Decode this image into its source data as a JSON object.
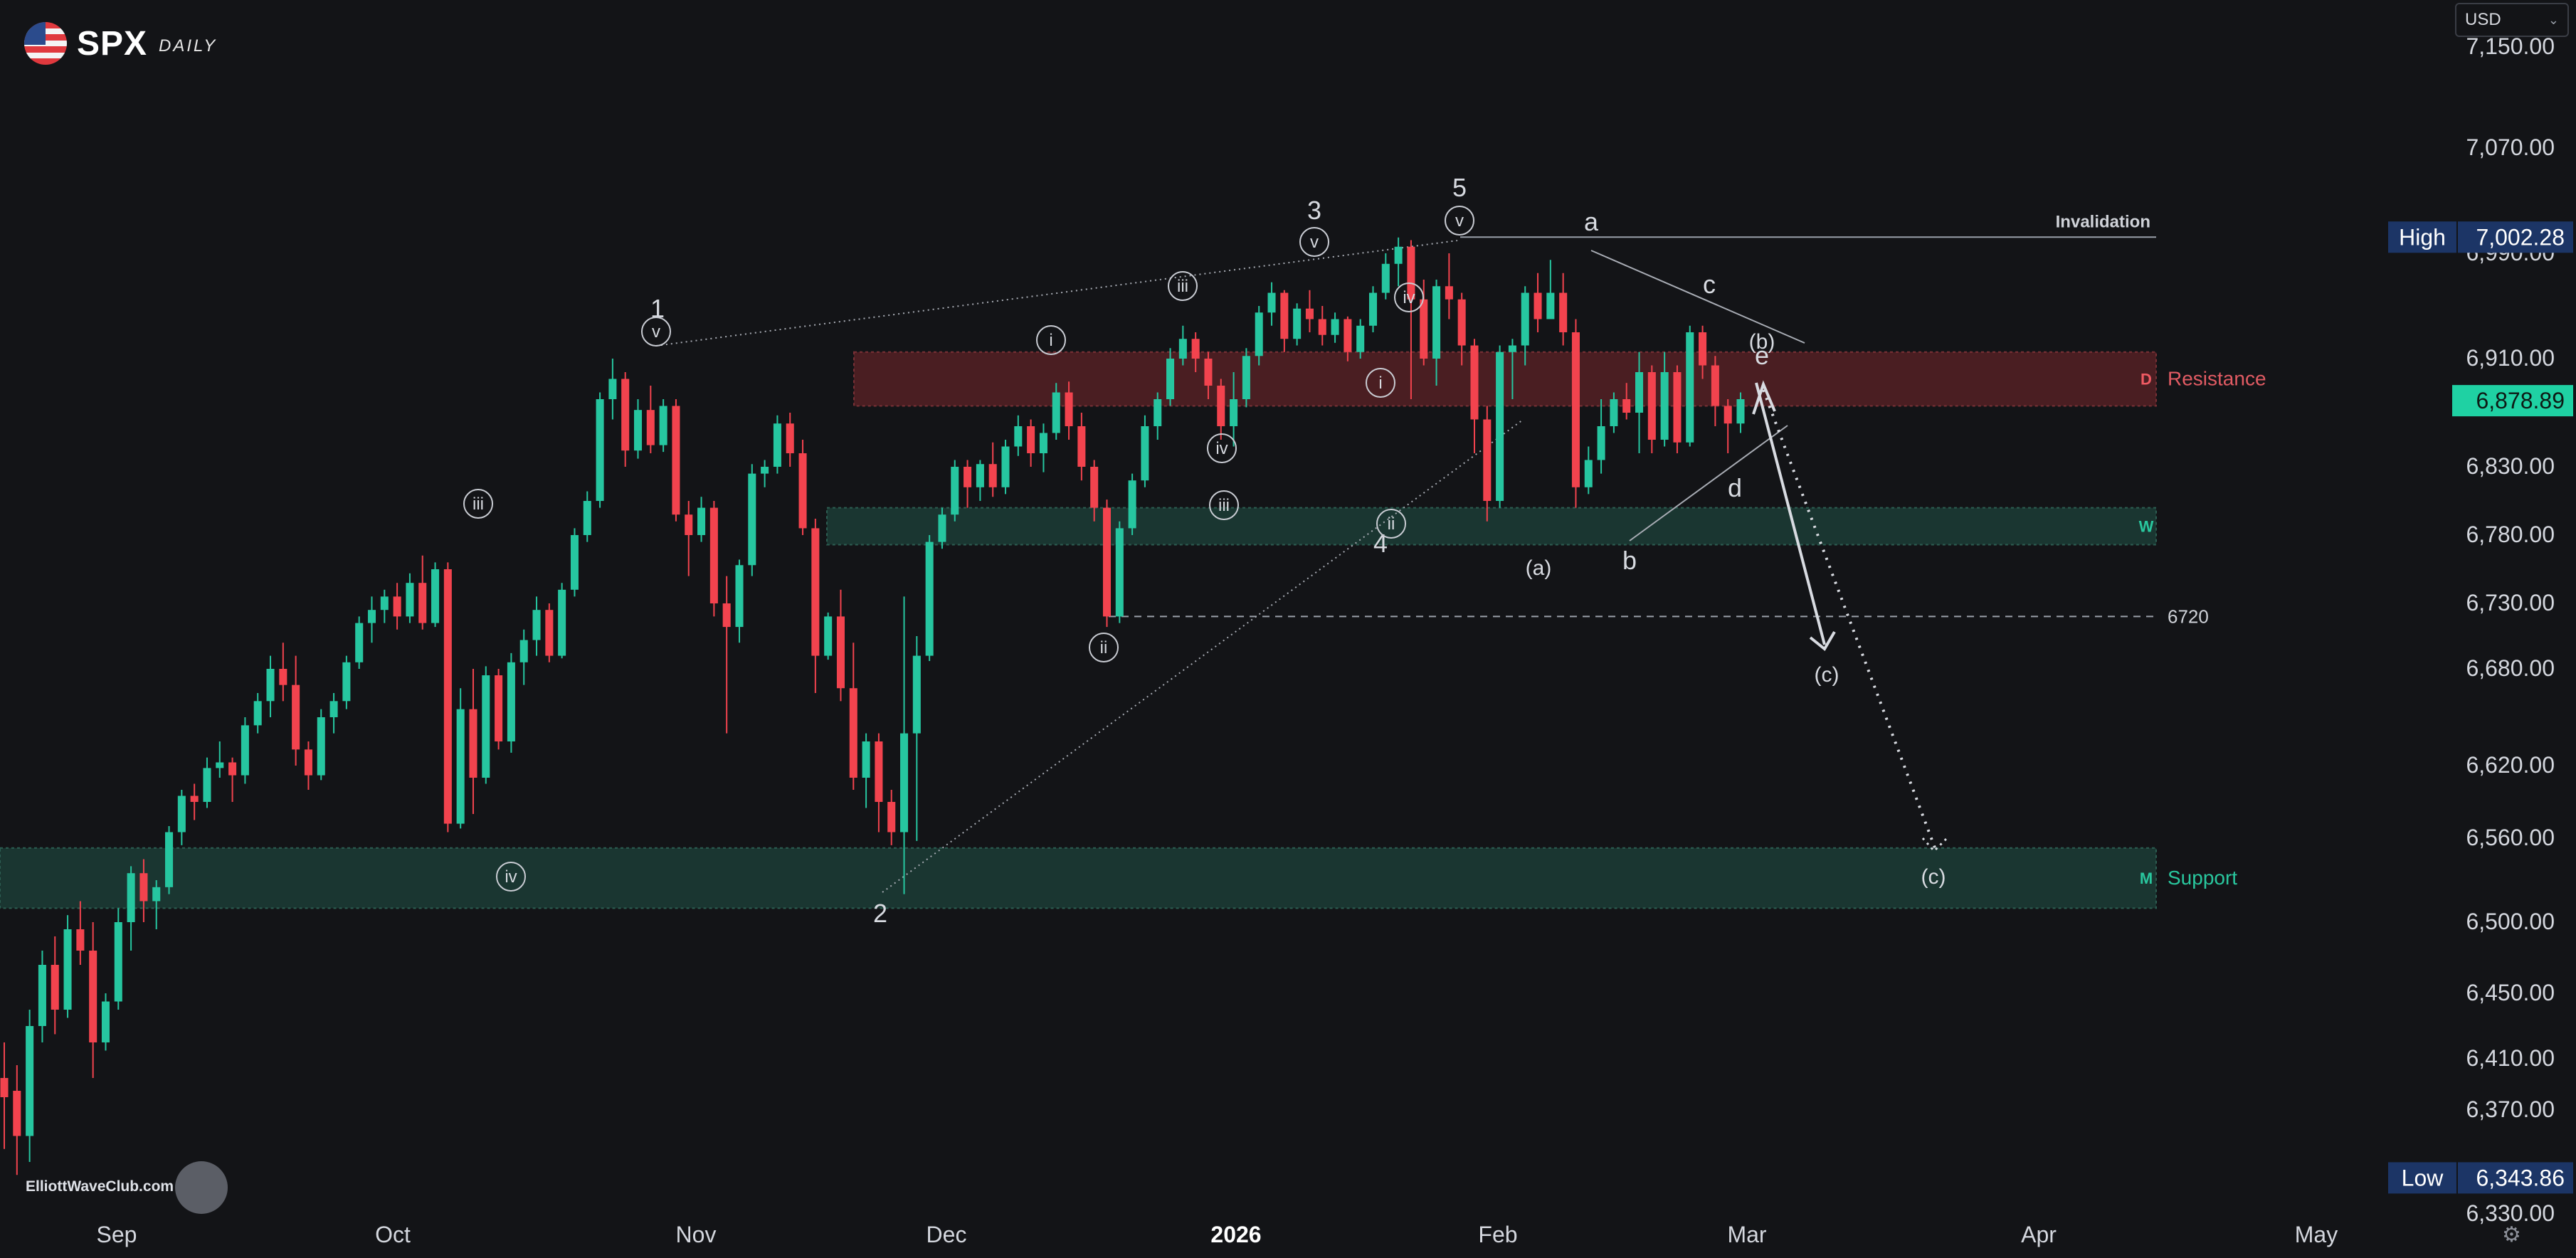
{
  "header": {
    "symbol": "SPX",
    "timeframe": "DAILY"
  },
  "currency_selector": {
    "value": "USD"
  },
  "footer": {
    "website": "ElliottWaveClub.com"
  },
  "chart_data": {
    "type": "candlestick",
    "instrument": "SPX",
    "interval": "1D",
    "x_ticks": [
      "Sep",
      "Oct",
      "Nov",
      "Dec",
      "2026",
      "Feb",
      "Mar",
      "Apr",
      "May"
    ],
    "y_ticks": [
      "7,150.00",
      "7,070.00",
      "6,990.00",
      "6,910.00",
      "6,830.00",
      "6,780.00",
      "6,730.00",
      "6,680.00",
      "6,620.00",
      "6,560.00",
      "6,500.00",
      "6,450.00",
      "6,410.00",
      "6,370.00",
      "6,330.00"
    ],
    "y_range": [
      6320,
      7170
    ],
    "high": {
      "label": "High",
      "value": "7,002.28"
    },
    "low": {
      "label": "Low",
      "value": "6,343.86"
    },
    "last_price": "6,878.89",
    "colors": {
      "up": "#26c6a0",
      "down": "#f2434e",
      "zone_green": "#1d3a33",
      "zone_red": "#4a1e22",
      "last": "#1fd1a3",
      "high_low_bg": "#1c3566"
    },
    "candles": [
      [
        6395,
        6420,
        6355,
        6380
      ],
      [
        6385,
        6405,
        6345,
        6360
      ],
      [
        6360,
        6440,
        6350,
        6430
      ],
      [
        6430,
        6480,
        6420,
        6470
      ],
      [
        6470,
        6490,
        6425,
        6440
      ],
      [
        6440,
        6505,
        6435,
        6495
      ],
      [
        6495,
        6515,
        6470,
        6480
      ],
      [
        6480,
        6500,
        6395,
        6420
      ],
      [
        6420,
        6450,
        6415,
        6445
      ],
      [
        6445,
        6510,
        6440,
        6500
      ],
      [
        6500,
        6540,
        6480,
        6535
      ],
      [
        6535,
        6545,
        6500,
        6515
      ],
      [
        6515,
        6530,
        6495,
        6525
      ],
      [
        6525,
        6570,
        6520,
        6565
      ],
      [
        6565,
        6600,
        6555,
        6595
      ],
      [
        6595,
        6605,
        6575,
        6590
      ],
      [
        6590,
        6625,
        6585,
        6618
      ],
      [
        6618,
        6635,
        6610,
        6622
      ],
      [
        6622,
        6625,
        6590,
        6612
      ],
      [
        6612,
        6650,
        6605,
        6645
      ],
      [
        6645,
        6665,
        6640,
        6660
      ],
      [
        6660,
        6690,
        6650,
        6680
      ],
      [
        6680,
        6700,
        6660,
        6670
      ],
      [
        6670,
        6690,
        6620,
        6630
      ],
      [
        6630,
        6635,
        6600,
        6612
      ],
      [
        6612,
        6655,
        6608,
        6650
      ],
      [
        6650,
        6665,
        6640,
        6660
      ],
      [
        6660,
        6690,
        6655,
        6685
      ],
      [
        6685,
        6720,
        6680,
        6715
      ],
      [
        6715,
        6735,
        6700,
        6725
      ],
      [
        6725,
        6740,
        6715,
        6735
      ],
      [
        6735,
        6745,
        6710,
        6720
      ],
      [
        6720,
        6752,
        6715,
        6745
      ],
      [
        6745,
        6765,
        6710,
        6715
      ],
      [
        6715,
        6760,
        6712,
        6755
      ],
      [
        6755,
        6760,
        6565,
        6572
      ],
      [
        6572,
        6668,
        6568,
        6655
      ],
      [
        6655,
        6680,
        6580,
        6610
      ],
      [
        6610,
        6682,
        6605,
        6676
      ],
      [
        6676,
        6680,
        6630,
        6635
      ],
      [
        6635,
        6692,
        6628,
        6685
      ],
      [
        6685,
        6710,
        6670,
        6702
      ],
      [
        6702,
        6735,
        6690,
        6725
      ],
      [
        6725,
        6730,
        6685,
        6690
      ],
      [
        6690,
        6745,
        6688,
        6740
      ],
      [
        6740,
        6785,
        6735,
        6780
      ],
      [
        6780,
        6812,
        6775,
        6805
      ],
      [
        6805,
        6885,
        6800,
        6880
      ],
      [
        6880,
        6910,
        6865,
        6895
      ],
      [
        6895,
        6900,
        6830,
        6842
      ],
      [
        6842,
        6880,
        6836,
        6872
      ],
      [
        6872,
        6890,
        6840,
        6846
      ],
      [
        6846,
        6880,
        6841,
        6875
      ],
      [
        6875,
        6880,
        6790,
        6795
      ],
      [
        6795,
        6805,
        6750,
        6780
      ],
      [
        6780,
        6808,
        6775,
        6800
      ],
      [
        6800,
        6805,
        6720,
        6730
      ],
      [
        6730,
        6750,
        6640,
        6712
      ],
      [
        6712,
        6762,
        6700,
        6758
      ],
      [
        6758,
        6832,
        6750,
        6825
      ],
      [
        6825,
        6835,
        6815,
        6830
      ],
      [
        6830,
        6868,
        6825,
        6862
      ],
      [
        6862,
        6870,
        6830,
        6840
      ],
      [
        6840,
        6850,
        6780,
        6785
      ],
      [
        6785,
        6792,
        6665,
        6690
      ],
      [
        6690,
        6723,
        6687,
        6720
      ],
      [
        6720,
        6740,
        6660,
        6668
      ],
      [
        6668,
        6700,
        6600,
        6610
      ],
      [
        6610,
        6640,
        6585,
        6635
      ],
      [
        6635,
        6640,
        6565,
        6590
      ],
      [
        6590,
        6600,
        6555,
        6565
      ],
      [
        6565,
        6735,
        6520,
        6640
      ],
      [
        6640,
        6705,
        6558,
        6690
      ],
      [
        6690,
        6780,
        6686,
        6775
      ],
      [
        6775,
        6800,
        6770,
        6795
      ],
      [
        6795,
        6835,
        6790,
        6830
      ],
      [
        6830,
        6835,
        6800,
        6815
      ],
      [
        6815,
        6835,
        6805,
        6832
      ],
      [
        6832,
        6848,
        6808,
        6815
      ],
      [
        6815,
        6850,
        6810,
        6845
      ],
      [
        6845,
        6868,
        6838,
        6860
      ],
      [
        6860,
        6865,
        6830,
        6840
      ],
      [
        6840,
        6862,
        6826,
        6855
      ],
      [
        6855,
        6892,
        6850,
        6885
      ],
      [
        6885,
        6893,
        6850,
        6860
      ],
      [
        6860,
        6870,
        6820,
        6830
      ],
      [
        6830,
        6835,
        6790,
        6800
      ],
      [
        6800,
        6806,
        6712,
        6720
      ],
      [
        6720,
        6790,
        6715,
        6785
      ],
      [
        6785,
        6825,
        6780,
        6820
      ],
      [
        6820,
        6868,
        6815,
        6860
      ],
      [
        6860,
        6885,
        6850,
        6880
      ],
      [
        6880,
        6918,
        6875,
        6910
      ],
      [
        6910,
        6935,
        6905,
        6925
      ],
      [
        6925,
        6930,
        6900,
        6910
      ],
      [
        6910,
        6915,
        6880,
        6890
      ],
      [
        6890,
        6895,
        6850,
        6860
      ],
      [
        6860,
        6900,
        6845,
        6880
      ],
      [
        6880,
        6918,
        6874,
        6912
      ],
      [
        6912,
        6950,
        6905,
        6945
      ],
      [
        6945,
        6968,
        6935,
        6960
      ],
      [
        6960,
        6962,
        6915,
        6925
      ],
      [
        6925,
        6952,
        6920,
        6948
      ],
      [
        6948,
        6962,
        6930,
        6940
      ],
      [
        6940,
        6950,
        6920,
        6928
      ],
      [
        6928,
        6945,
        6922,
        6940
      ],
      [
        6940,
        6942,
        6908,
        6915
      ],
      [
        6915,
        6940,
        6910,
        6935
      ],
      [
        6935,
        6965,
        6930,
        6960
      ],
      [
        6960,
        6990,
        6955,
        6982
      ],
      [
        6982,
        7002,
        6965,
        6995
      ],
      [
        6995,
        7000,
        6880,
        6955
      ],
      [
        6955,
        6970,
        6905,
        6910
      ],
      [
        6910,
        6970,
        6890,
        6965
      ],
      [
        6965,
        6990,
        6940,
        6955
      ],
      [
        6955,
        6960,
        6905,
        6920
      ],
      [
        6920,
        6925,
        6840,
        6865
      ],
      [
        6865,
        6875,
        6790,
        6805
      ],
      [
        6805,
        6920,
        6800,
        6915
      ],
      [
        6915,
        6925,
        6880,
        6920
      ],
      [
        6920,
        6965,
        6905,
        6960
      ],
      [
        6960,
        6975,
        6930,
        6940
      ],
      [
        6940,
        6985,
        6940,
        6960
      ],
      [
        6960,
        6975,
        6920,
        6930
      ],
      [
        6930,
        6940,
        6800,
        6815
      ],
      [
        6815,
        6845,
        6810,
        6835
      ],
      [
        6835,
        6880,
        6825,
        6860
      ],
      [
        6860,
        6885,
        6855,
        6880
      ],
      [
        6880,
        6892,
        6865,
        6870
      ],
      [
        6870,
        6915,
        6840,
        6900
      ],
      [
        6900,
        6905,
        6840,
        6850
      ],
      [
        6850,
        6915,
        6845,
        6900
      ],
      [
        6900,
        6905,
        6840,
        6848
      ],
      [
        6848,
        6935,
        6845,
        6930
      ],
      [
        6930,
        6935,
        6895,
        6905
      ],
      [
        6905,
        6912,
        6860,
        6875
      ],
      [
        6875,
        6880,
        6840,
        6862
      ],
      [
        6862,
        6885,
        6855,
        6880
      ]
    ],
    "zones": [
      {
        "label": "Resistance",
        "tag": "D",
        "from": 6875,
        "to": 6915
      },
      {
        "label": "",
        "tag": "W",
        "from": 6773,
        "to": 6800
      },
      {
        "label": "Support",
        "tag": "M",
        "from": 6510,
        "to": 6553
      }
    ],
    "levels": [
      {
        "label": "Invalidation",
        "value": 7002.28,
        "style": "solid"
      },
      {
        "label": "6720",
        "value": 6720,
        "style": "dashed"
      }
    ],
    "wave_labels": [
      {
        "text": "1",
        "plain": true
      },
      {
        "text": "v",
        "circle": true
      },
      {
        "text": "2",
        "plain": true
      },
      {
        "text": "3",
        "plain": true
      },
      {
        "text": "v",
        "circle": true
      },
      {
        "text": "4",
        "plain": true
      },
      {
        "text": "5",
        "plain": true
      },
      {
        "text": "v",
        "circle": true
      },
      {
        "text": "iii",
        "circle": true
      },
      {
        "text": "iv",
        "circle": true
      },
      {
        "text": "i",
        "circle": true
      },
      {
        "text": "ii",
        "circle": true
      },
      {
        "text": "iii",
        "circle": true
      },
      {
        "text": "iv",
        "circle": true
      },
      {
        "text": "i",
        "circle": true
      },
      {
        "text": "ii",
        "circle": true
      },
      {
        "text": "iii",
        "circle": true
      },
      {
        "text": "iv",
        "circle": true
      },
      {
        "text": "(a)",
        "plain": true
      },
      {
        "text": "a",
        "plain": true
      },
      {
        "text": "b",
        "plain": true
      },
      {
        "text": "c",
        "plain": true
      },
      {
        "text": "d",
        "plain": true
      },
      {
        "text": "e",
        "plain": true
      },
      {
        "text": "(b)",
        "plain": true
      },
      {
        "text": "(c)",
        "plain": true
      },
      {
        "text": "(c)",
        "plain": true
      }
    ]
  }
}
